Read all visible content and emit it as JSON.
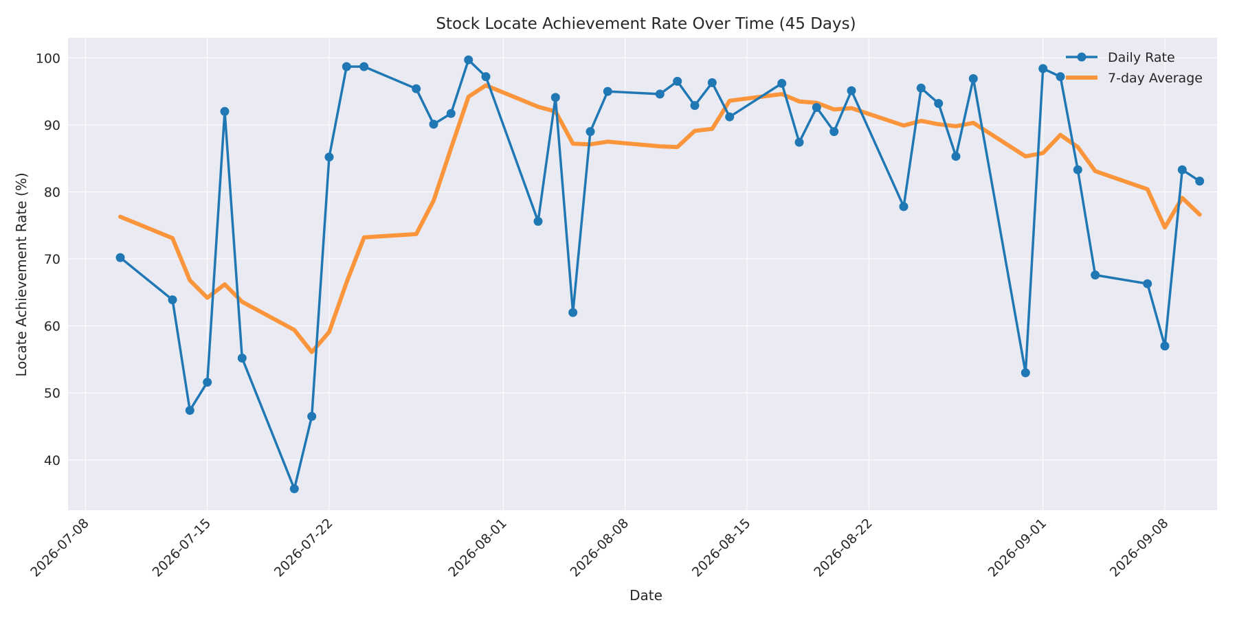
{
  "chart_data": {
    "type": "line",
    "title": "Stock Locate Achievement Rate Over Time (45 Days)",
    "xlabel": "Date",
    "ylabel": "Locate Achievement Rate (%)",
    "xlim": [
      "2026-07-07",
      "2026-09-11"
    ],
    "ylim": [
      32.5,
      103
    ],
    "x_ticks": [
      "2026-07-08",
      "2026-07-15",
      "2026-07-22",
      "2026-08-01",
      "2026-08-08",
      "2026-08-15",
      "2026-08-22",
      "2026-09-01",
      "2026-09-08"
    ],
    "y_ticks": [
      40,
      50,
      60,
      70,
      80,
      90,
      100
    ],
    "grid": true,
    "legend_position": "top-right",
    "colors": {
      "daily": "#1f77b4",
      "avg": "#ff7f0e",
      "plot_background": "#eaeaf2"
    },
    "x": [
      "2026-07-10",
      "2026-07-13",
      "2026-07-14",
      "2026-07-15",
      "2026-07-16",
      "2026-07-17",
      "2026-07-20",
      "2026-07-21",
      "2026-07-22",
      "2026-07-23",
      "2026-07-24",
      "2026-07-27",
      "2026-07-28",
      "2026-07-29",
      "2026-07-30",
      "2026-07-31",
      "2026-08-03",
      "2026-08-04",
      "2026-08-05",
      "2026-08-06",
      "2026-08-07",
      "2026-08-10",
      "2026-08-11",
      "2026-08-12",
      "2026-08-13",
      "2026-08-14",
      "2026-08-17",
      "2026-08-18",
      "2026-08-19",
      "2026-08-20",
      "2026-08-21",
      "2026-08-24",
      "2026-08-25",
      "2026-08-26",
      "2026-08-27",
      "2026-08-28",
      "2026-08-31",
      "2026-09-01",
      "2026-09-02",
      "2026-09-03",
      "2026-09-04",
      "2026-09-07",
      "2026-09-08",
      "2026-09-09",
      "2026-09-10"
    ],
    "series": [
      {
        "name": "Daily Rate",
        "values": [
          70.2,
          63.9,
          47.4,
          51.6,
          92.0,
          55.2,
          35.7,
          46.5,
          85.2,
          98.7,
          98.7,
          95.4,
          90.1,
          91.7,
          99.7,
          97.2,
          75.6,
          94.1,
          62.0,
          89.0,
          95.0,
          94.6,
          96.5,
          92.9,
          96.3,
          91.2,
          96.2,
          87.4,
          92.6,
          89.0,
          95.1,
          77.8,
          95.5,
          93.2,
          85.3,
          96.9,
          53.0,
          98.4,
          97.2,
          83.3,
          67.6,
          66.3,
          57.0,
          83.3,
          81.6
        ]
      },
      {
        "name": "7-day Average",
        "values": [
          76.3,
          73.1,
          66.8,
          64.2,
          66.2,
          63.6,
          59.4,
          56.1,
          59.1,
          66.5,
          73.2,
          73.7,
          78.7,
          86.5,
          94.2,
          95.9,
          92.7,
          92.0,
          87.2,
          87.1,
          87.5,
          86.8,
          86.7,
          89.1,
          89.4,
          93.6,
          94.6,
          93.5,
          93.3,
          92.3,
          92.5,
          89.9,
          90.6,
          90.1,
          89.8,
          90.3,
          85.3,
          85.8,
          88.5,
          86.7,
          83.1,
          80.4,
          74.7,
          79.1,
          76.6
        ]
      }
    ]
  }
}
